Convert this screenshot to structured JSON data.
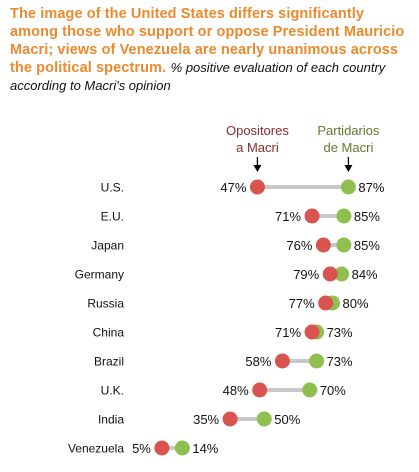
{
  "title": "The image of the United States differs significantly among those who support or oppose President Mauricio Macri; views of Venezuela are nearly unanimous across the political spectrum.",
  "subtitle": "% positive evaluation of each country according to Macri's opinion",
  "colors": {
    "title": "#e98a2e",
    "opponents": "#d9534f",
    "supporters": "#8fbf4f",
    "opponents_label": "#8b2a2a",
    "supporters_label": "#5e7a2c",
    "connector": "#c8c8c8"
  },
  "chart_data": {
    "type": "dumbbell",
    "title": "The image of the United States differs significantly among those who support or oppose President Mauricio Macri; views of Venezuela are nearly unanimous across the political spectrum.",
    "subtitle": "% positive evaluation of each country according to Macri's opinion",
    "categories": [
      "U.S.",
      "E.U.",
      "Japan",
      "Germany",
      "Russia",
      "China",
      "Brazil",
      "U.K.",
      "India",
      "Venezuela"
    ],
    "series": [
      {
        "name": "Opositores a Macri",
        "values": [
          47,
          71,
          76,
          79,
          77,
          71,
          58,
          48,
          35,
          5
        ]
      },
      {
        "name": "Partidarios de Macri",
        "values": [
          87,
          85,
          85,
          84,
          80,
          73,
          73,
          70,
          50,
          14
        ]
      }
    ],
    "labels": {
      "opponents": [
        "47%",
        "71%",
        "76%",
        "79%",
        "77%",
        "71%",
        "58%",
        "48%",
        "35%",
        "5%"
      ],
      "supporters": [
        "87%",
        "85%",
        "85%",
        "84%",
        "80%",
        "73%",
        "73%",
        "70%",
        "50%",
        "14%"
      ]
    },
    "legend": {
      "opponents": [
        "Opositores",
        "a Macri"
      ],
      "supporters": [
        "Partidarios",
        "de Macri"
      ]
    },
    "xlim": [
      0,
      100
    ]
  }
}
